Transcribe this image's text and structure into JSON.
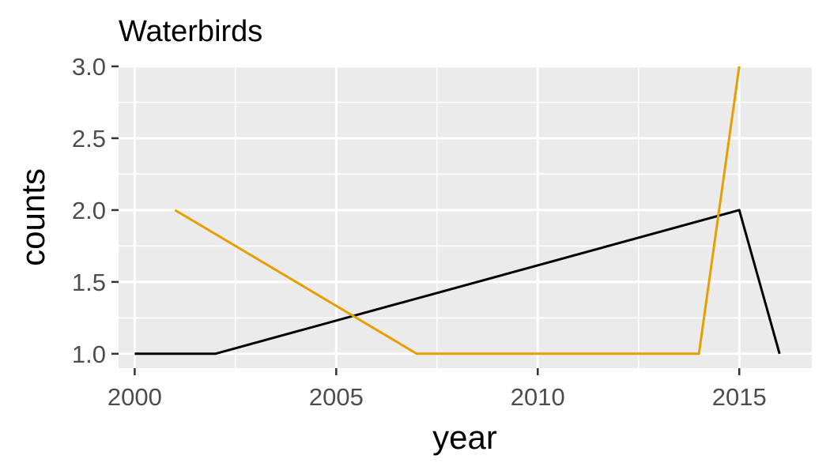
{
  "chart_data": {
    "type": "line",
    "title": "Waterbirds",
    "xlabel": "year",
    "ylabel": "counts",
    "xlim": [
      1999.6,
      2016.8
    ],
    "ylim": [
      0.9,
      3.0
    ],
    "x_ticks": [
      2000,
      2005,
      2010,
      2015
    ],
    "x_tick_labels": [
      "2000",
      "2005",
      "2010",
      "2015"
    ],
    "y_ticks": [
      1.0,
      1.5,
      2.0,
      2.5,
      3.0
    ],
    "y_tick_labels": [
      "1.0",
      "1.5",
      "2.0",
      "2.5",
      "3.0"
    ],
    "grid": true,
    "legend": "none",
    "background_color": "#ebebeb",
    "grid_color": "#ffffff",
    "series": [
      {
        "color": "#000000",
        "x": [
          2000,
          2002,
          2015,
          2016
        ],
        "y": [
          1,
          1,
          2,
          1
        ]
      },
      {
        "color": "#e69f00",
        "x": [
          2001,
          2007,
          2014,
          2015
        ],
        "y": [
          2,
          1,
          1,
          3
        ]
      }
    ]
  }
}
